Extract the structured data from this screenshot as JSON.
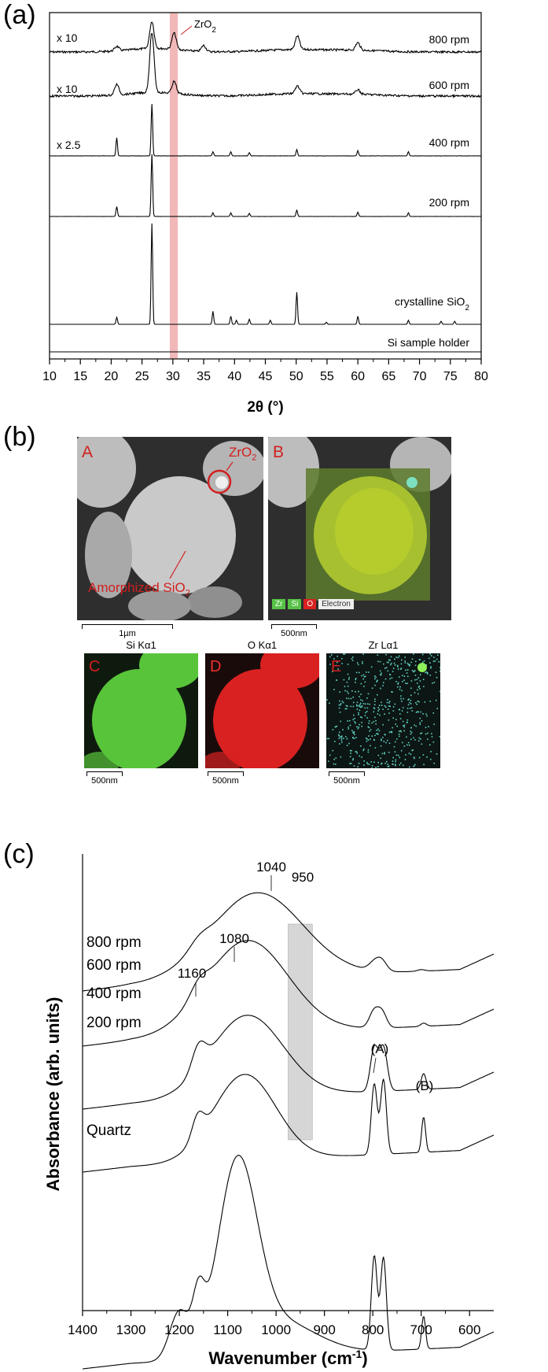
{
  "panels": {
    "a": {
      "letter": "(a)"
    },
    "b": {
      "letter": "(b)"
    },
    "c": {
      "letter": "(c)"
    }
  },
  "chart_data": [
    {
      "type": "line",
      "panel": "a",
      "xlabel": "2θ (°)",
      "ylabel": "",
      "xlim": [
        10,
        80
      ],
      "x_ticks": [
        "10",
        "15",
        "20",
        "25",
        "30",
        "35",
        "40",
        "45",
        "50",
        "55",
        "60",
        "65",
        "70",
        "75",
        "80"
      ],
      "highlight": {
        "label": "ZrO2",
        "label_main": "ZrO",
        "label_sub": "2",
        "x_range": [
          29.5,
          30.8
        ],
        "color": "#f2b8b8"
      },
      "series": [
        {
          "name": "800 rpm",
          "multiplier": "x 10",
          "peaks": [
            [
              20.9,
              0.15
            ],
            [
              26.6,
              0.9
            ],
            [
              30.2,
              0.55
            ],
            [
              35.0,
              0.2
            ],
            [
              50.2,
              0.45
            ],
            [
              60.0,
              0.25
            ]
          ]
        },
        {
          "name": "600 rpm",
          "multiplier": "x 10",
          "peaks": [
            [
              20.9,
              0.35
            ],
            [
              26.6,
              2.0
            ],
            [
              30.2,
              0.4
            ],
            [
              50.2,
              0.25
            ],
            [
              60.0,
              0.15
            ]
          ]
        },
        {
          "name": "400 rpm",
          "multiplier": "x 2.5",
          "peaks": [
            [
              20.9,
              0.35
            ],
            [
              26.6,
              1.0
            ],
            [
              36.5,
              0.08
            ],
            [
              39.4,
              0.08
            ],
            [
              42.4,
              0.06
            ],
            [
              50.1,
              0.12
            ],
            [
              60.0,
              0.1
            ],
            [
              68.2,
              0.08
            ]
          ]
        },
        {
          "name": "200 rpm",
          "multiplier": "",
          "peaks": [
            [
              20.9,
              0.16
            ],
            [
              26.6,
              1.0
            ],
            [
              36.5,
              0.06
            ],
            [
              39.4,
              0.06
            ],
            [
              42.4,
              0.05
            ],
            [
              50.1,
              0.1
            ],
            [
              60.0,
              0.07
            ],
            [
              68.2,
              0.06
            ]
          ]
        },
        {
          "name": "crystalline SiO2",
          "name_main": "crystalline SiO",
          "name_sub": "2",
          "multiplier": "",
          "peaks": [
            [
              20.9,
              0.07
            ],
            [
              26.6,
              1.0
            ],
            [
              36.5,
              0.13
            ],
            [
              39.4,
              0.08
            ],
            [
              40.3,
              0.04
            ],
            [
              42.4,
              0.05
            ],
            [
              45.8,
              0.04
            ],
            [
              50.1,
              0.32
            ],
            [
              54.9,
              0.02
            ],
            [
              60.0,
              0.08
            ],
            [
              68.2,
              0.04
            ],
            [
              73.5,
              0.03
            ],
            [
              75.7,
              0.03
            ]
          ]
        },
        {
          "name": "Si sample holder",
          "multiplier": "",
          "peaks": []
        }
      ]
    },
    {
      "type": "line",
      "panel": "c",
      "xlabel": "Wavenumber (cm-1)",
      "xlabel_main": "Wavenumber (cm",
      "xlabel_sup": "-1",
      "xlabel_end": ")",
      "ylabel": "Absorbance (arb. units)",
      "xlim": [
        1400,
        550
      ],
      "x_ticks": [
        "1400",
        "1300",
        "1200",
        "1100",
        "1000",
        "900",
        "800",
        "700",
        "600"
      ],
      "highlight": {
        "label": "950",
        "x_range": [
          975,
          925
        ],
        "color": "#d6d6d6"
      },
      "annotations": [
        {
          "text": "1040",
          "x": 1040
        },
        {
          "text": "950",
          "x": 950
        },
        {
          "text": "1080",
          "x": 1080
        },
        {
          "text": "1160",
          "x": 1160
        },
        {
          "text": "(A)",
          "x": 790
        },
        {
          "text": "(B)",
          "x": 695
        }
      ],
      "series": [
        {
          "name": "800 rpm"
        },
        {
          "name": "600 rpm"
        },
        {
          "name": "400 rpm"
        },
        {
          "name": "200 rpm"
        },
        {
          "name": "Quartz"
        }
      ]
    }
  ],
  "micro": {
    "A": {
      "letter": "A",
      "zro2_main": "ZrO",
      "zro2_sub": "2",
      "amorph_main": "Amorphized SiO",
      "amorph_sub": "2",
      "scale": "1µm"
    },
    "B": {
      "letter": "B",
      "scale": "500nm",
      "legend": [
        "Zr",
        "Si",
        "O",
        "Electron"
      ]
    },
    "maps": [
      {
        "letter": "C",
        "title": "Si Kα1",
        "scale": "500nm",
        "color": "#58c43a"
      },
      {
        "letter": "D",
        "title": "O Kα1",
        "scale": "500nm",
        "color": "#d92121"
      },
      {
        "letter": "E",
        "title": "Zr Lα1",
        "scale": "500nm",
        "color": "#5fd0c0"
      }
    ]
  }
}
